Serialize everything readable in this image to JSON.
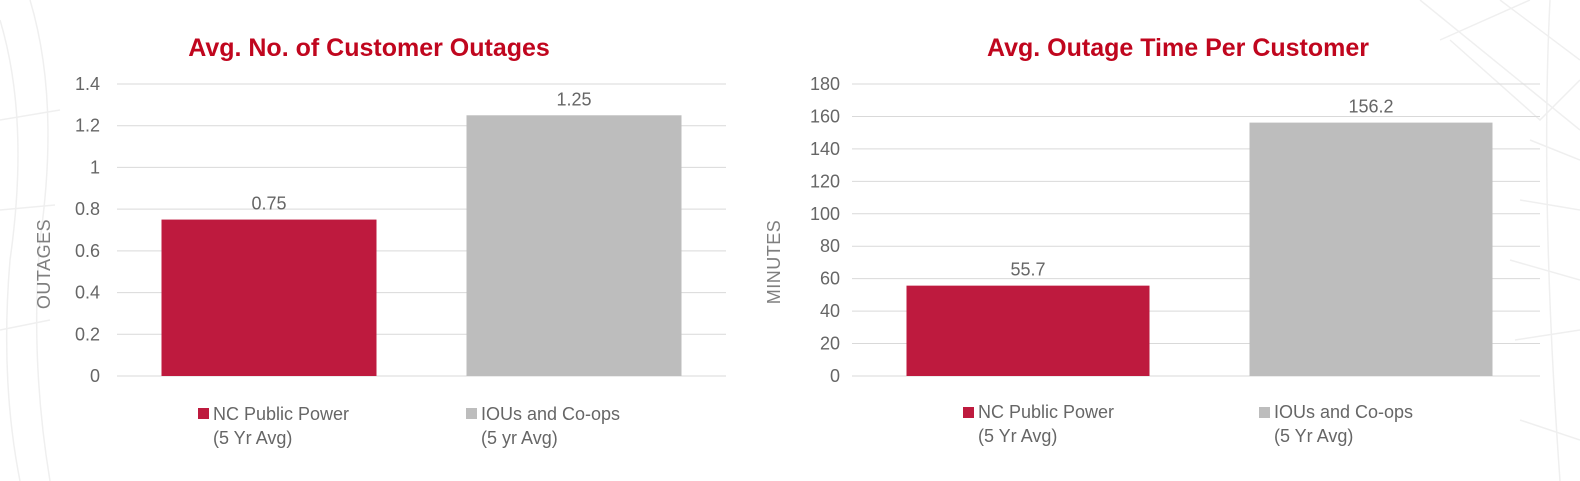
{
  "colors": {
    "title": "#c0061e",
    "public_power": "#be1a3e",
    "ious": "#bdbdbd",
    "grid": "#d9d9d9",
    "text": "#666666"
  },
  "chart_data": [
    {
      "type": "bar",
      "title": "Avg. No. of Customer Outages",
      "ylabel": "OUTAGES",
      "xlabel": "",
      "ylim": [
        0,
        1.4
      ],
      "yticks": [
        "0",
        "0.2",
        "0.4",
        "0.6",
        "0.8",
        "1",
        "1.2",
        "1.4"
      ],
      "grid": true,
      "legend_position": "bottom",
      "categories": [
        "NC Public Power (5 Yr Avg)",
        "IOUs and Co-ops (5 yr Avg)"
      ],
      "values": [
        0.75,
        1.25
      ],
      "value_labels": [
        "0.75",
        "1.25"
      ],
      "legend": [
        {
          "line1": "NC Public Power",
          "line2": "(5 Yr Avg)",
          "color": "#be1a3e"
        },
        {
          "line1": "IOUs and Co-ops",
          "line2": "(5 yr Avg)",
          "color": "#bdbdbd"
        }
      ]
    },
    {
      "type": "bar",
      "title": "Avg. Outage Time Per Customer",
      "ylabel": "MINUTES",
      "xlabel": "",
      "ylim": [
        0,
        180
      ],
      "yticks": [
        "0",
        "20",
        "40",
        "60",
        "80",
        "100",
        "120",
        "140",
        "160",
        "180"
      ],
      "grid": true,
      "legend_position": "bottom",
      "categories": [
        "NC Public Power (5 Yr Avg)",
        "IOUs and Co-ops (5 Yr Avg)"
      ],
      "values": [
        55.7,
        156.2
      ],
      "value_labels": [
        "55.7",
        "156.2"
      ],
      "legend": [
        {
          "line1": "NC Public Power",
          "line2": "(5 Yr Avg)",
          "color": "#be1a3e"
        },
        {
          "line1": "IOUs and Co-ops",
          "line2": "(5 Yr Avg)",
          "color": "#bdbdbd"
        }
      ]
    }
  ]
}
